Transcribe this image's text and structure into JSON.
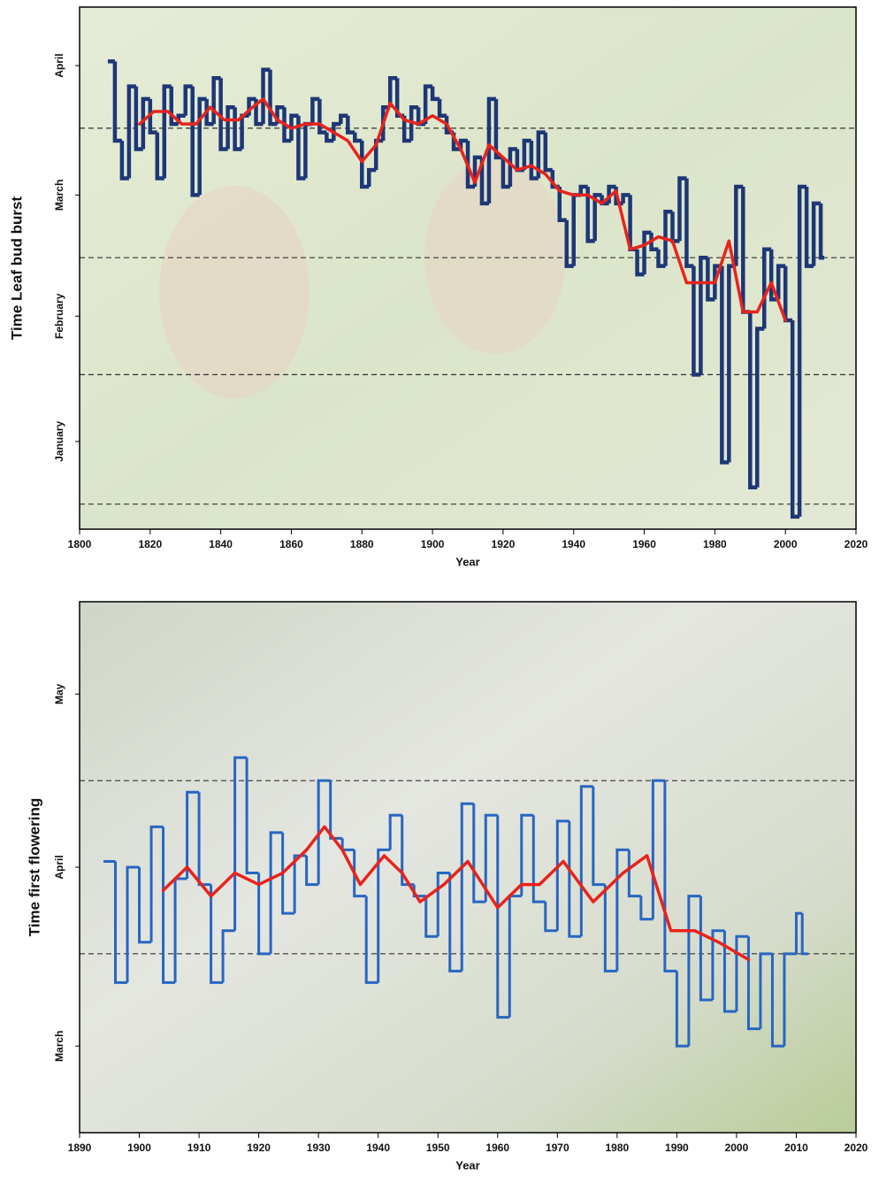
{
  "chart_data": [
    {
      "type": "line",
      "ylabel": "Time Leaf bud burst",
      "xlabel": "Year",
      "xlim": [
        1800,
        2020
      ],
      "xticks": [
        1800,
        1820,
        1840,
        1860,
        1880,
        1900,
        1920,
        1940,
        1960,
        1980,
        2000,
        2020
      ],
      "ylim": [
        -6,
        119
      ],
      "yticks": [
        {
          "value": 15,
          "label": "January"
        },
        {
          "value": 45,
          "label": "February"
        },
        {
          "value": 74,
          "label": "March"
        },
        {
          "value": 105,
          "label": "April"
        }
      ],
      "hlines": [
        0,
        31,
        59,
        90
      ],
      "series": [
        {
          "style": "step",
          "color": "#1d3776",
          "x": [
            1808,
            1810,
            1812,
            1814,
            1816,
            1818,
            1820,
            1822,
            1824,
            1826,
            1828,
            1830,
            1832,
            1834,
            1836,
            1838,
            1840,
            1842,
            1844,
            1846,
            1848,
            1850,
            1852,
            1854,
            1856,
            1858,
            1860,
            1862,
            1864,
            1866,
            1868,
            1870,
            1872,
            1874,
            1876,
            1878,
            1880,
            1882,
            1884,
            1886,
            1888,
            1890,
            1892,
            1894,
            1896,
            1898,
            1900,
            1902,
            1904,
            1906,
            1908,
            1910,
            1912,
            1914,
            1916,
            1918,
            1920,
            1922,
            1924,
            1926,
            1928,
            1930,
            1932,
            1934,
            1936,
            1938,
            1940,
            1942,
            1944,
            1946,
            1948,
            1950,
            1952,
            1954,
            1956,
            1958,
            1960,
            1962,
            1964,
            1966,
            1968,
            1970,
            1972,
            1974,
            1976,
            1978,
            1980,
            1982,
            1984,
            1986,
            1988,
            1990,
            1992,
            1994,
            1996,
            1998,
            2000,
            2002,
            2004,
            2006,
            2008,
            2010
          ],
          "values": [
            106,
            87,
            78,
            100,
            85,
            97,
            89,
            78,
            100,
            91,
            93,
            100,
            74,
            97,
            91,
            102,
            85,
            95,
            85,
            93,
            97,
            91,
            104,
            91,
            95,
            87,
            93,
            78,
            91,
            97,
            89,
            87,
            91,
            93,
            89,
            87,
            76,
            80,
            87,
            95,
            102,
            93,
            87,
            95,
            91,
            100,
            97,
            93,
            89,
            85,
            87,
            76,
            83,
            72,
            97,
            83,
            76,
            85,
            80,
            87,
            78,
            89,
            80,
            76,
            68,
            57,
            74,
            76,
            63,
            74,
            72,
            76,
            72,
            74,
            61,
            55,
            65,
            61,
            57,
            70,
            63,
            78,
            57,
            31,
            59,
            49,
            57,
            10,
            57,
            76,
            46,
            4,
            42,
            61,
            49,
            57,
            44,
            -3,
            76,
            57,
            72,
            59
          ]
        },
        {
          "style": "smooth",
          "color": "#e8231c",
          "x": [
            1817,
            1821,
            1825,
            1829,
            1833,
            1837,
            1841,
            1845,
            1849,
            1852,
            1856,
            1860,
            1864,
            1868,
            1872,
            1876,
            1880,
            1884,
            1888,
            1892,
            1896,
            1900,
            1904,
            1908,
            1912,
            1916,
            1920,
            1924,
            1928,
            1932,
            1936,
            1940,
            1944,
            1948,
            1952,
            1956,
            1960,
            1964,
            1968,
            1972,
            1976,
            1980,
            1984,
            1988,
            1992,
            1996,
            2000
          ],
          "values": [
            91,
            94,
            94,
            91,
            91,
            95,
            92,
            92,
            95,
            97,
            92,
            90,
            91,
            91,
            89,
            87,
            82,
            86,
            96,
            92,
            91,
            93,
            91,
            85,
            77,
            86,
            83,
            80,
            81,
            79,
            75,
            74,
            74,
            72,
            75,
            61,
            62,
            64,
            63,
            53,
            53,
            53,
            63,
            46,
            46,
            53,
            44
          ]
        }
      ]
    },
    {
      "type": "line",
      "ylabel": "Time first flowering",
      "xlabel": "Year",
      "xlim": [
        1890,
        2020
      ],
      "xticks": [
        1890,
        1900,
        1910,
        1920,
        1930,
        1940,
        1950,
        1960,
        1970,
        1980,
        1990,
        2000,
        2010,
        2020
      ],
      "ylim": [
        59,
        151
      ],
      "yticks": [
        {
          "value": 74,
          "label": "March"
        },
        {
          "value": 105,
          "label": "April"
        },
        {
          "value": 135,
          "label": "May"
        }
      ],
      "hlines": [
        90,
        120
      ],
      "series": [
        {
          "style": "step",
          "color": "#2766c2",
          "x": [
            1894,
            1896,
            1898,
            1900,
            1902,
            1904,
            1906,
            1908,
            1910,
            1912,
            1914,
            1916,
            1918,
            1920,
            1922,
            1924,
            1926,
            1928,
            1930,
            1932,
            1934,
            1936,
            1938,
            1940,
            1942,
            1944,
            1946,
            1948,
            1950,
            1952,
            1954,
            1956,
            1958,
            1960,
            1962,
            1964,
            1966,
            1968,
            1970,
            1972,
            1974,
            1976,
            1978,
            1980,
            1982,
            1984,
            1986,
            1988,
            1990,
            1992,
            1994,
            1996,
            1998,
            2000,
            2002,
            2004,
            2006,
            2008,
            2010,
            2011
          ],
          "values": [
            106,
            85,
            105,
            92,
            112,
            85,
            103,
            118,
            102,
            85,
            94,
            124,
            104,
            90,
            111,
            97,
            107,
            102,
            120,
            110,
            108,
            100,
            85,
            108,
            114,
            102,
            100,
            93,
            104,
            87,
            116,
            99,
            114,
            79,
            100,
            114,
            99,
            94,
            113,
            93,
            119,
            102,
            87,
            108,
            100,
            96,
            120,
            87,
            74,
            100,
            82,
            94,
            80,
            93,
            77,
            90,
            74,
            90,
            97,
            90
          ]
        },
        {
          "style": "smooth",
          "color": "#e8231c",
          "x": [
            1904,
            1908,
            1912,
            1916,
            1920,
            1924,
            1928,
            1931,
            1934,
            1937,
            1941,
            1944,
            1947,
            1951,
            1955,
            1960,
            1964,
            1967,
            1971,
            1976,
            1981,
            1985,
            1989,
            1993,
            1997,
            2002
          ],
          "values": [
            101,
            105,
            100,
            104,
            102,
            104,
            108,
            112,
            108,
            102,
            107,
            104,
            99,
            102,
            106,
            98,
            102,
            102,
            106,
            99,
            104,
            107,
            94,
            94,
            92,
            89
          ]
        }
      ]
    }
  ]
}
